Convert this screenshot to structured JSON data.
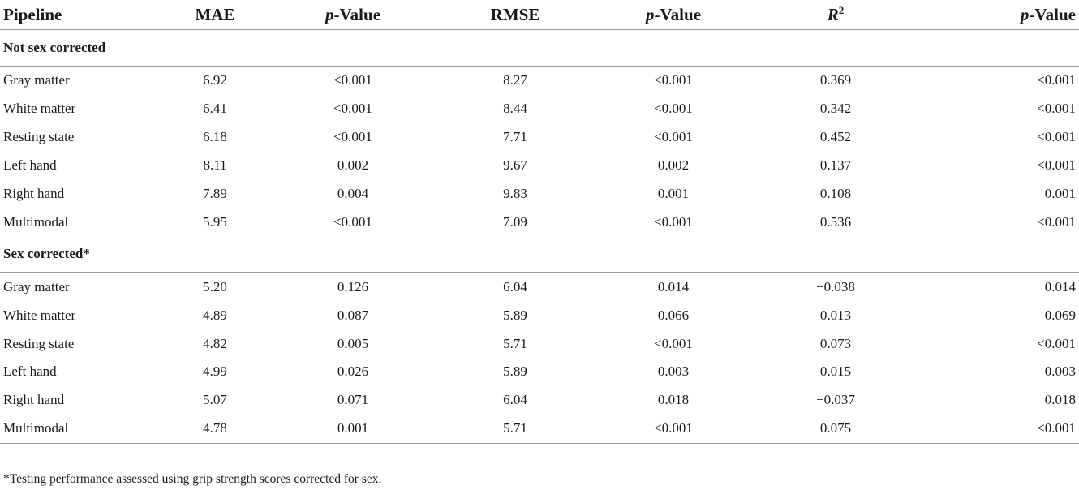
{
  "headers": {
    "pipeline": "Pipeline",
    "mae": "MAE",
    "p_label": "p",
    "value_suffix": "-Value",
    "rmse": "RMSE",
    "r": "R",
    "r_sup": "2"
  },
  "sections": [
    {
      "title": "Not sex corrected",
      "rows": [
        {
          "pipeline": "Gray matter",
          "mae": "6.92",
          "p1": "<0.001",
          "rmse": "8.27",
          "p2": "<0.001",
          "r2": "0.369",
          "p3": "<0.001"
        },
        {
          "pipeline": "White matter",
          "mae": "6.41",
          "p1": "<0.001",
          "rmse": "8.44",
          "p2": "<0.001",
          "r2": "0.342",
          "p3": "<0.001"
        },
        {
          "pipeline": "Resting state",
          "mae": "6.18",
          "p1": "<0.001",
          "rmse": "7.71",
          "p2": "<0.001",
          "r2": "0.452",
          "p3": "<0.001"
        },
        {
          "pipeline": "Left hand",
          "mae": "8.11",
          "p1": "0.002",
          "rmse": "9.67",
          "p2": "0.002",
          "r2": "0.137",
          "p3": "<0.001"
        },
        {
          "pipeline": "Right hand",
          "mae": "7.89",
          "p1": "0.004",
          "rmse": "9.83",
          "p2": "0.001",
          "r2": "0.108",
          "p3": "0.001"
        },
        {
          "pipeline": "Multimodal",
          "mae": "5.95",
          "p1": "<0.001",
          "rmse": "7.09",
          "p2": "<0.001",
          "r2": "0.536",
          "p3": "<0.001"
        }
      ]
    },
    {
      "title": "Sex corrected*",
      "rows": [
        {
          "pipeline": "Gray matter",
          "mae": "5.20",
          "p1": "0.126",
          "rmse": "6.04",
          "p2": "0.014",
          "r2": "−0.038",
          "p3": "0.014"
        },
        {
          "pipeline": "White matter",
          "mae": "4.89",
          "p1": "0.087",
          "rmse": "5.89",
          "p2": "0.066",
          "r2": "0.013",
          "p3": "0.069"
        },
        {
          "pipeline": "Resting state",
          "mae": "4.82",
          "p1": "0.005",
          "rmse": "5.71",
          "p2": "<0.001",
          "r2": "0.073",
          "p3": "<0.001"
        },
        {
          "pipeline": "Left hand",
          "mae": "4.99",
          "p1": "0.026",
          "rmse": "5.89",
          "p2": "0.003",
          "r2": "0.015",
          "p3": "0.003"
        },
        {
          "pipeline": "Right hand",
          "mae": "5.07",
          "p1": "0.071",
          "rmse": "6.04",
          "p2": "0.018",
          "r2": "−0.037",
          "p3": "0.018"
        },
        {
          "pipeline": "Multimodal",
          "mae": "4.78",
          "p1": "0.001",
          "rmse": "5.71",
          "p2": "<0.001",
          "r2": "0.075",
          "p3": "<0.001"
        }
      ]
    }
  ],
  "footnote": "*Testing performance assessed using grip strength scores corrected for sex."
}
